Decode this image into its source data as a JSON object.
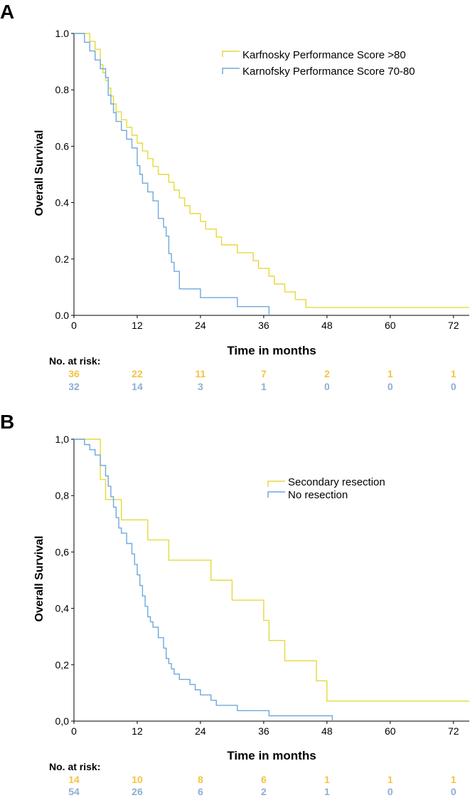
{
  "colors": {
    "series1": "#e6d93a",
    "series2": "#6fa8dc",
    "risk1": "#f5c342",
    "risk2": "#8eaed4",
    "axis": "#000000"
  },
  "risk_title": "No. at risk:",
  "chart_data": [
    {
      "type": "line",
      "panel": "A",
      "ylabel": "Overall Survival",
      "xlabel": "Time in months",
      "xlim": [
        0,
        75
      ],
      "ylim": [
        0,
        1
      ],
      "xticks": [
        "0",
        "12",
        "24",
        "36",
        "48",
        "60",
        "72"
      ],
      "yticks": [
        "0.0",
        "0.2",
        "0.4",
        "0.6",
        "0.8",
        "1.0"
      ],
      "legend_position": "top-right",
      "series": [
        {
          "name": "Karfnosky Performance Score >80",
          "x": [
            0,
            3,
            4,
            5,
            5.5,
            6,
            6.5,
            7,
            7.5,
            8,
            9,
            10,
            11,
            12,
            13,
            14,
            15,
            16,
            18,
            19,
            20,
            21,
            22,
            24,
            25,
            27,
            28,
            31,
            34,
            35,
            37,
            38,
            40,
            42,
            44,
            46,
            47,
            49,
            75
          ],
          "y": [
            1.0,
            0.972,
            0.944,
            0.889,
            0.861,
            0.833,
            0.806,
            0.778,
            0.75,
            0.722,
            0.694,
            0.667,
            0.639,
            0.611,
            0.583,
            0.556,
            0.528,
            0.5,
            0.472,
            0.444,
            0.417,
            0.389,
            0.361,
            0.333,
            0.306,
            0.278,
            0.25,
            0.222,
            0.194,
            0.167,
            0.139,
            0.111,
            0.083,
            0.056,
            0.028,
            0.028,
            0.028,
            0.028,
            0.028
          ],
          "risk": [
            "36",
            "22",
            "11",
            "7",
            "2",
            "1",
            "1"
          ]
        },
        {
          "name": "Karnofsky Performance Score 70-80",
          "x": [
            0,
            2,
            3,
            4,
            5,
            6,
            6.5,
            7,
            7.5,
            8,
            9,
            10,
            11,
            12,
            12.5,
            13,
            14,
            15,
            16,
            17,
            17.5,
            18,
            18.5,
            19,
            20,
            24,
            31,
            37
          ],
          "y": [
            1.0,
            0.969,
            0.938,
            0.906,
            0.875,
            0.844,
            0.781,
            0.75,
            0.719,
            0.688,
            0.656,
            0.625,
            0.594,
            0.531,
            0.5,
            0.469,
            0.438,
            0.406,
            0.344,
            0.313,
            0.281,
            0.219,
            0.188,
            0.156,
            0.094,
            0.063,
            0.031,
            0.0
          ],
          "risk": [
            "32",
            "14",
            "3",
            "1",
            "0",
            "0",
            "0"
          ]
        }
      ]
    },
    {
      "type": "line",
      "panel": "B",
      "ylabel": "Overall Survival",
      "xlabel": "Time in months",
      "xlim": [
        0,
        75
      ],
      "ylim": [
        0,
        1
      ],
      "xticks": [
        "0",
        "12",
        "24",
        "36",
        "48",
        "60",
        "72"
      ],
      "yticks": [
        "0,0",
        "0,2",
        "0,4",
        "0,6",
        "0,8",
        "1,0"
      ],
      "legend_position": "top-right",
      "series": [
        {
          "name": "Secondary resection",
          "x": [
            0,
            5,
            6,
            9,
            14,
            18,
            26,
            30,
            36,
            37,
            40,
            46,
            48,
            75
          ],
          "y": [
            1.0,
            0.857,
            0.786,
            0.714,
            0.643,
            0.571,
            0.5,
            0.429,
            0.357,
            0.286,
            0.214,
            0.143,
            0.071,
            0.071
          ],
          "risk": [
            "14",
            "10",
            "8",
            "6",
            "1",
            "1",
            "1"
          ]
        },
        {
          "name": "No resection",
          "x": [
            0,
            2,
            3,
            4,
            5,
            6,
            6.5,
            7,
            7.5,
            8,
            8.5,
            9,
            10,
            11,
            11.5,
            12,
            12.5,
            13,
            13.5,
            14,
            14.5,
            15,
            16,
            17,
            17.5,
            18,
            18.5,
            19,
            20,
            22,
            23,
            24,
            26,
            27,
            31,
            37,
            43,
            49
          ],
          "y": [
            1.0,
            0.981,
            0.963,
            0.944,
            0.907,
            0.87,
            0.833,
            0.796,
            0.759,
            0.722,
            0.685,
            0.667,
            0.63,
            0.593,
            0.556,
            0.519,
            0.481,
            0.444,
            0.407,
            0.37,
            0.352,
            0.333,
            0.296,
            0.259,
            0.222,
            0.204,
            0.185,
            0.167,
            0.148,
            0.13,
            0.111,
            0.093,
            0.074,
            0.056,
            0.037,
            0.019,
            0.019,
            0.0
          ],
          "risk": [
            "54",
            "26",
            "6",
            "2",
            "1",
            "0",
            "0"
          ]
        }
      ]
    }
  ]
}
